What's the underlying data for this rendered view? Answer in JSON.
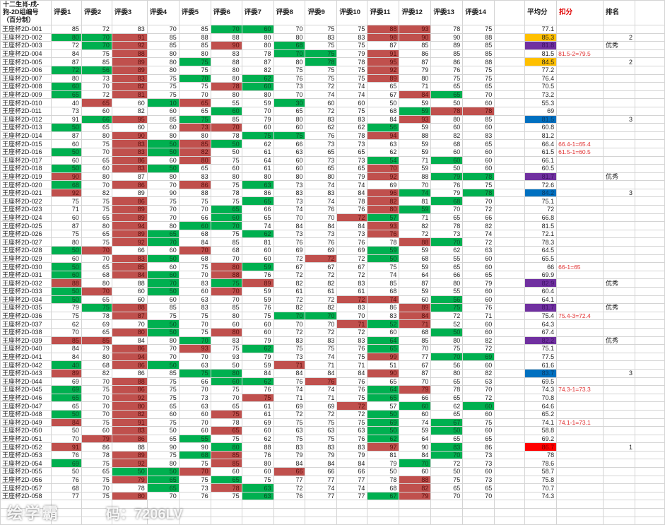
{
  "header": {
    "title": "十二生肖-戌-狗-2D组编号（百分制）",
    "judges": [
      "评委1",
      "评委2",
      "评委3",
      "评委4",
      "评委5",
      "评委6",
      "评委7",
      "评委8",
      "评委9",
      "评委10",
      "评委11",
      "评委12",
      "评委13",
      "评委14"
    ],
    "average": "平均分",
    "deduct": "扣分",
    "rank": "排名"
  },
  "colors": {
    "R": "#c0504d",
    "G": "#00b050",
    "Y": "#ffc000",
    "P": "#7030a0",
    "B": "#0070c0",
    "X": "#ff0000"
  },
  "watermark": {
    "logo": "绘学霸",
    "code": "码：7206LV"
  },
  "rows": [
    {
      "id": "王座杯2D-001",
      "s": [
        85,
        72,
        83,
        70,
        85,
        70,
        60,
        70,
        75,
        75,
        88,
        93,
        78,
        75
      ],
      "m": ".....GG...RR..",
      "avg": "77.1",
      "am": "",
      "ded": "",
      "rank": ""
    },
    {
      "id": "王座杯2D-002",
      "s": [
        80,
        70,
        91,
        85,
        88,
        88,
        80,
        80,
        83,
        83,
        98,
        90,
        90,
        88
      ],
      "m": "GGR.......RR..",
      "avg": "85.3",
      "am": "Y",
      "ded": "",
      "rank": "2"
    },
    {
      "id": "王座杯2D-003",
      "s": [
        72,
        70,
        92,
        85,
        85,
        90,
        80,
        68,
        75,
        75,
        87,
        85,
        89,
        85
      ],
      "m": ".GR..R.G......",
      "avg": "81.8",
      "am": "P",
      "ded": "",
      "rank": "优秀"
    },
    {
      "id": "王座杯2D-004",
      "s": [
        84,
        75,
        88,
        80,
        80,
        83,
        78,
        70,
        75,
        79,
        91,
        86,
        85,
        85
      ],
      "m": "..R....GG.R...",
      "avg": "81.5",
      "am": "",
      "ded": "81.5-2=79.5",
      "rank": ""
    },
    {
      "id": "王座杯2D-005",
      "s": [
        87,
        85,
        89,
        80,
        75,
        88,
        87,
        80,
        78,
        78,
        95,
        87,
        86,
        88
      ],
      "m": "..R.G...G.R...",
      "avg": "84.5",
      "am": "Y",
      "ded": "",
      "rank": "2"
    },
    {
      "id": "王座杯2D-006",
      "s": [
        72,
        56,
        89,
        80,
        75,
        80,
        82,
        75,
        75,
        75,
        92,
        79,
        76,
        75
      ],
      "m": "GGR.......R...",
      "avg": "77.2",
      "am": "",
      "ded": "",
      "rank": ""
    },
    {
      "id": "王座杯2D-007",
      "s": [
        80,
        73,
        83,
        75,
        70,
        80,
        62,
        76,
        75,
        75,
        89,
        80,
        75,
        75
      ],
      "m": "..R.G.G...R...",
      "avg": "76.4",
      "am": "",
      "ded": "",
      "rank": ""
    },
    {
      "id": "王座杯2D-008",
      "s": [
        60,
        70,
        82,
        75,
        75,
        78,
        60,
        73,
        72,
        74,
        65,
        71,
        65,
        65
      ],
      "m": "G.R..RG.......",
      "avg": "70.5",
      "am": "",
      "ded": "",
      "rank": ""
    },
    {
      "id": "王座杯2D-009",
      "s": [
        65,
        72,
        81,
        75,
        70,
        80,
        80,
        70,
        74,
        74,
        67,
        84,
        65,
        70
      ],
      "m": "G.R........RG.",
      "avg": "73.2",
      "am": "",
      "ded": "",
      "rank": ""
    },
    {
      "id": "王座杯2D-010",
      "s": [
        40,
        65,
        60,
        10,
        65,
        55,
        59,
        30,
        60,
        60,
        50,
        59,
        50,
        60
      ],
      "m": ".R.GR..G......",
      "avg": "55.3",
      "am": "",
      "ded": "",
      "rank": ""
    },
    {
      "id": "王座杯2D-011",
      "s": [
        73,
        60,
        82,
        60,
        65,
        60,
        70,
        65,
        72,
        75,
        68,
        59,
        78,
        78
      ],
      "m": ".....G.....GRR",
      "avg": "69",
      "am": "",
      "ded": "",
      "rank": ""
    },
    {
      "id": "王座杯2D-012",
      "s": [
        91,
        66,
        95,
        85,
        75,
        85,
        79,
        80,
        83,
        83,
        84,
        93,
        80,
        85
      ],
      "m": ".GR.G......R..",
      "avg": "81.5",
      "am": "B",
      "ded": "",
      "rank": "3"
    },
    {
      "id": "王座杯2D-013",
      "s": [
        50,
        65,
        60,
        60,
        73,
        70,
        60,
        60,
        62,
        62,
        56,
        59,
        60,
        60
      ],
      "m": "G...RR....G...",
      "avg": "60.8",
      "am": "",
      "ded": "",
      "rank": ""
    },
    {
      "id": "王座杯2D-014",
      "s": [
        87,
        80,
        90,
        80,
        80,
        78,
        75,
        75,
        76,
        78,
        94,
        88,
        82,
        83
      ],
      "m": "..R...GG..R...",
      "avg": "81.2",
      "am": "",
      "ded": "",
      "rank": ""
    },
    {
      "id": "王座杯2D-015",
      "s": [
        60,
        75,
        83,
        50,
        85,
        50,
        62,
        66,
        73,
        73,
        63,
        59,
        68,
        65
      ],
      "m": "..RGRG........",
      "avg": "66.4",
      "am": "",
      "ded": "66.4-1=65.4",
      "rank": ""
    },
    {
      "id": "王座杯2D-016",
      "s": [
        50,
        70,
        83,
        50,
        82,
        50,
        61,
        63,
        65,
        65,
        62,
        59,
        60,
        60
      ],
      "m": "G.RGR.........",
      "avg": "61.5",
      "am": "",
      "ded": "61.5-1=60.5",
      "rank": ""
    },
    {
      "id": "王座杯2D-017",
      "s": [
        60,
        65,
        86,
        60,
        80,
        75,
        64,
        60,
        73,
        73,
        54,
        71,
        60,
        60
      ],
      "m": "..R.R.....G.G.",
      "avg": "66.1",
      "am": "",
      "ded": "",
      "rank": ""
    },
    {
      "id": "王座杯2D-018",
      "s": [
        50,
        60,
        83,
        50,
        65,
        60,
        61,
        60,
        65,
        65,
        70,
        59,
        50,
        60
      ],
      "m": "G.RG......R...",
      "avg": "60.5",
      "am": "",
      "ded": "",
      "rank": ""
    },
    {
      "id": "王座杯2D-019",
      "s": [
        90,
        80,
        87,
        80,
        83,
        80,
        80,
        80,
        80,
        79,
        92,
        88,
        79,
        78
      ],
      "m": "R.........R.GG",
      "avg": "81.7",
      "am": "P",
      "ded": "",
      "rank": "优秀"
    },
    {
      "id": "王座杯2D-020",
      "s": [
        68,
        70,
        86,
        70,
        86,
        75,
        63,
        73,
        74,
        74,
        69,
        70,
        76,
        75
      ],
      "m": "G.R.R.G.......",
      "avg": "72.6",
      "am": "",
      "ded": "",
      "rank": ""
    },
    {
      "id": "王座杯2D-021",
      "s": [
        92,
        82,
        89,
        90,
        88,
        78,
        86,
        83,
        83,
        84,
        96,
        74,
        79,
        78
      ],
      "m": "R.........RG.G",
      "avg": "84.2",
      "am": "B",
      "ded": "",
      "rank": "3"
    },
    {
      "id": "王座杯2D-022",
      "s": [
        75,
        75,
        86,
        75,
        75,
        75,
        65,
        73,
        74,
        78,
        82,
        81,
        68,
        70
      ],
      "m": "..R...G...R.G.",
      "avg": "75.1",
      "am": "",
      "ded": "",
      "rank": ""
    },
    {
      "id": "王座杯2D-023",
      "s": [
        71,
        75,
        89,
        70,
        70,
        65,
        66,
        74,
        76,
        76,
        80,
        59,
        70,
        72
      ],
      "m": "..R..G....RG..",
      "avg": "72",
      "am": "",
      "ded": "",
      "rank": ""
    },
    {
      "id": "王座杯2D-024",
      "s": [
        60,
        65,
        89,
        70,
        66,
        60,
        65,
        70,
        70,
        72,
        57,
        71,
        65,
        66
      ],
      "m": "..R..G...RG...",
      "avg": "66.8",
      "am": "",
      "ded": "",
      "rank": ""
    },
    {
      "id": "王座杯2D-025",
      "s": [
        87,
        80,
        94,
        80,
        60,
        70,
        74,
        84,
        84,
        84,
        93,
        82,
        78,
        82
      ],
      "m": "..R.GG....R...",
      "avg": "81.5",
      "am": "",
      "ded": "",
      "rank": ""
    },
    {
      "id": "王座杯2D-026",
      "s": [
        75,
        65,
        89,
        65,
        68,
        75,
        62,
        73,
        73,
        73,
        76,
        72,
        73,
        74
      ],
      "m": "..RG..G...R...",
      "avg": "72.1",
      "am": "",
      "ded": "",
      "rank": ""
    },
    {
      "id": "王座杯2D-027",
      "s": [
        80,
        75,
        92,
        70,
        84,
        85,
        81,
        76,
        76,
        76,
        78,
        88,
        70,
        72
      ],
      "m": "..RG.......RG.",
      "avg": "78.3",
      "am": "",
      "ded": "",
      "rank": ""
    },
    {
      "id": "王座杯2D-028",
      "s": [
        50,
        70,
        66,
        60,
        70,
        68,
        60,
        69,
        69,
        69,
        59,
        59,
        62,
        63
      ],
      "m": "GR..R.....G...",
      "avg": "64.5",
      "am": "",
      "ded": "",
      "rank": ""
    },
    {
      "id": "王座杯2D-029",
      "s": [
        60,
        70,
        83,
        50,
        68,
        70,
        60,
        72,
        72,
        72,
        50,
        68,
        55,
        60
      ],
      "m": "..RG....R.G...",
      "avg": "65.5",
      "am": "",
      "ded": "",
      "rank": ""
    },
    {
      "id": "王座杯2D-030",
      "s": [
        50,
        65,
        85,
        60,
        75,
        80,
        59,
        67,
        67,
        67,
        75,
        59,
        65,
        60
      ],
      "m": "G.R..RG.......",
      "avg": "66",
      "am": "",
      "ded": "66-1=65",
      "rank": ""
    },
    {
      "id": "王座杯2D-031",
      "s": [
        60,
        68,
        84,
        60,
        70,
        88,
        76,
        72,
        72,
        72,
        74,
        64,
        66,
        65
      ],
      "m": "G.RG.R........",
      "avg": "69.9",
      "am": "",
      "ded": "",
      "rank": ""
    },
    {
      "id": "王座杯2D-032",
      "s": [
        88,
        80,
        88,
        70,
        83,
        75,
        89,
        82,
        82,
        83,
        85,
        87,
        80,
        79
      ],
      "m": "R..G.GR.......",
      "avg": "82.9",
      "am": "P",
      "ded": "",
      "rank": "优秀"
    },
    {
      "id": "王座杯2D-033",
      "s": [
        50,
        70,
        60,
        50,
        60,
        70,
        59,
        61,
        61,
        61,
        68,
        59,
        55,
        60
      ],
      "m": "GR.G.R........",
      "avg": "60.4",
      "am": "",
      "ded": "",
      "rank": ""
    },
    {
      "id": "王座杯2D-034",
      "s": [
        50,
        65,
        60,
        60,
        63,
        70,
        59,
        72,
        72,
        72,
        74,
        60,
        56,
        60
      ],
      "m": "G........RR.G.",
      "avg": "64.1",
      "am": "",
      "ded": "",
      "rank": ""
    },
    {
      "id": "王座杯2D-035",
      "s": [
        79,
        75,
        88,
        85,
        83,
        85,
        76,
        82,
        82,
        83,
        86,
        89,
        75,
        76
      ],
      "m": ".GR........RG.",
      "avg": "81.7",
      "am": "P",
      "ded": "",
      "rank": "优秀"
    },
    {
      "id": "王座杯2D-036",
      "s": [
        75,
        78,
        87,
        75,
        75,
        80,
        75,
        70,
        70,
        70,
        83,
        84,
        72,
        71
      ],
      "m": "..R....GG..R..",
      "avg": "75.4",
      "am": "",
      "ded": "75.4-3=72.4",
      "rank": ""
    },
    {
      "id": "王座杯2D-037",
      "s": [
        62,
        69,
        70,
        50,
        70,
        60,
        60,
        70,
        70,
        71,
        52,
        71,
        52,
        60
      ],
      "m": "...G.....RGR..",
      "avg": "64.3",
      "am": "",
      "ded": "",
      "rank": ""
    },
    {
      "id": "王座杯2D-038",
      "s": [
        70,
        65,
        80,
        50,
        75,
        80,
        60,
        72,
        72,
        72,
        60,
        68,
        50,
        60
      ],
      "m": "..RG.R......G.",
      "avg": "67.4",
      "am": "",
      "ded": "",
      "rank": ""
    },
    {
      "id": "王座杯2D-039",
      "s": [
        85,
        85,
        84,
        80,
        70,
        83,
        79,
        83,
        83,
        83,
        64,
        85,
        80,
        82
      ],
      "m": "RR..G.....G...",
      "avg": "82.2",
      "am": "P",
      "ded": "",
      "rank": "优秀"
    },
    {
      "id": "王座杯2D-040",
      "s": [
        84,
        79,
        86,
        70,
        93,
        75,
        62,
        75,
        75,
        76,
        65,
        70,
        75,
        72
      ],
      "m": "..R.R.G...G...",
      "avg": "75.1",
      "am": "",
      "ded": "",
      "rank": ""
    },
    {
      "id": "王座杯2D-041",
      "s": [
        84,
        80,
        94,
        70,
        70,
        93,
        79,
        73,
        74,
        75,
        99,
        77,
        70,
        69
      ],
      "m": "..R.......R.GG",
      "avg": "77.5",
      "am": "",
      "ded": "",
      "rank": ""
    },
    {
      "id": "王座杯2D-042",
      "s": [
        40,
        68,
        86,
        50,
        63,
        50,
        59,
        71,
        71,
        71,
        51,
        67,
        56,
        60
      ],
      "m": "G.RG...R......",
      "avg": "61.6",
      "am": "",
      "ded": "",
      "rank": ""
    },
    {
      "id": "王座杯2D-043",
      "s": [
        89,
        82,
        86,
        85,
        75,
        80,
        84,
        84,
        84,
        84,
        90,
        87,
        80,
        82
      ],
      "m": "R...GG....R...",
      "avg": "83.7",
      "am": "B",
      "ded": "",
      "rank": "3"
    },
    {
      "id": "王座杯2D-044",
      "s": [
        69,
        70,
        88,
        75,
        66,
        60,
        62,
        76,
        76,
        76,
        65,
        70,
        65,
        63
      ],
      "m": "..R..GG.R.....",
      "avg": "69.5",
      "am": "",
      "ded": "",
      "rank": ""
    },
    {
      "id": "王座杯2D-045",
      "s": [
        69,
        75,
        86,
        75,
        70,
        75,
        76,
        74,
        74,
        76,
        64,
        79,
        78,
        70
      ],
      "m": "G.R.......GR..",
      "avg": "74.3",
      "am": "",
      "ded": "74.3-1=73.3",
      "rank": ""
    },
    {
      "id": "王座杯2D-046",
      "s": [
        65,
        70,
        92,
        75,
        73,
        70,
        75,
        71,
        71,
        75,
        65,
        66,
        65,
        72
      ],
      "m": "G.R...R...G...",
      "avg": "70.8",
      "am": "",
      "ded": "",
      "rank": ""
    },
    {
      "id": "王座杯2D-047",
      "s": [
        65,
        70,
        80,
        65,
        63,
        65,
        61,
        69,
        69,
        72,
        57,
        60,
        62,
        60
      ],
      "m": "..R......R.G.G",
      "avg": "64.6",
      "am": "",
      "ded": "",
      "rank": ""
    },
    {
      "id": "王座杯2D-048",
      "s": [
        50,
        70,
        82,
        60,
        60,
        75,
        61,
        72,
        72,
        72,
        50,
        60,
        65,
        60
      ],
      "m": "G.R..R....G...",
      "avg": "65.2",
      "am": "",
      "ded": "",
      "rank": ""
    },
    {
      "id": "王座杯2D-049",
      "s": [
        84,
        75,
        91,
        75,
        70,
        78,
        69,
        75,
        75,
        75,
        69,
        74,
        67,
        75
      ],
      "m": "R.R.......G.G.",
      "avg": "74.1",
      "am": "",
      "ded": "74.1-1=73.1",
      "rank": ""
    },
    {
      "id": "王座杯2D-050",
      "s": [
        50,
        60,
        83,
        50,
        60,
        65,
        60,
        63,
        63,
        63,
        50,
        59,
        50,
        60
      ],
      "m": "..R..R....G.G.",
      "avg": "58.8",
      "am": "",
      "ded": "",
      "rank": ""
    },
    {
      "id": "王座杯2D-051",
      "s": [
        70,
        79,
        86,
        65,
        55,
        75,
        62,
        75,
        75,
        76,
        62,
        64,
        65,
        65
      ],
      "m": ".RR.G.....G...",
      "avg": "69.2",
      "am": "",
      "ded": "",
      "rank": ""
    },
    {
      "id": "王座杯2D-052",
      "s": [
        91,
        86,
        88,
        90,
        90,
        80,
        88,
        83,
        83,
        83,
        97,
        90,
        83,
        86
      ],
      "m": "R....G....R.G.",
      "avg": "86.7",
      "am": "X",
      "ded": "",
      "rank": "1"
    },
    {
      "id": "王座杯2D-053",
      "s": [
        76,
        78,
        89,
        75,
        68,
        85,
        76,
        79,
        79,
        79,
        81,
        84,
        70,
        73
      ],
      "m": "..R.GR......G.",
      "avg": "78",
      "am": "",
      "ded": "",
      "rank": ""
    },
    {
      "id": "王座杯2D-054",
      "s": [
        69,
        75,
        92,
        80,
        75,
        85,
        80,
        84,
        84,
        84,
        79,
        70,
        72,
        73
      ],
      "m": "G.R..R.....G..",
      "avg": "78.6",
      "am": "",
      "ded": "",
      "rank": ""
    },
    {
      "id": "王座杯2D-055",
      "s": [
        50,
        65,
        50,
        50,
        70,
        60,
        60,
        66,
        66,
        66,
        50,
        60,
        50,
        60
      ],
      "m": "..GGR..R......",
      "avg": "58.7",
      "am": "",
      "ded": "",
      "rank": ""
    },
    {
      "id": "王座杯2D-056",
      "s": [
        76,
        75,
        79,
        65,
        75,
        65,
        75,
        77,
        77,
        77,
        78,
        88,
        75,
        73
      ],
      "m": "..RG.G.....R..",
      "avg": "75.8",
      "am": "",
      "ded": "",
      "rank": ""
    },
    {
      "id": "王座杯2D-057",
      "s": [
        68,
        70,
        78,
        65,
        73,
        78,
        63,
        72,
        74,
        74,
        68,
        82,
        65,
        65
      ],
      "m": "...G.RG....R..",
      "avg": "70.7",
      "am": "",
      "ded": "",
      "rank": ""
    },
    {
      "id": "王座杯2D-058",
      "s": [
        77,
        75,
        80,
        70,
        76,
        75,
        63,
        76,
        77,
        77,
        67,
        79,
        70,
        70
      ],
      "m": "..R...G...GR..",
      "avg": "74.3",
      "am": "",
      "ded": "",
      "rank": ""
    }
  ]
}
